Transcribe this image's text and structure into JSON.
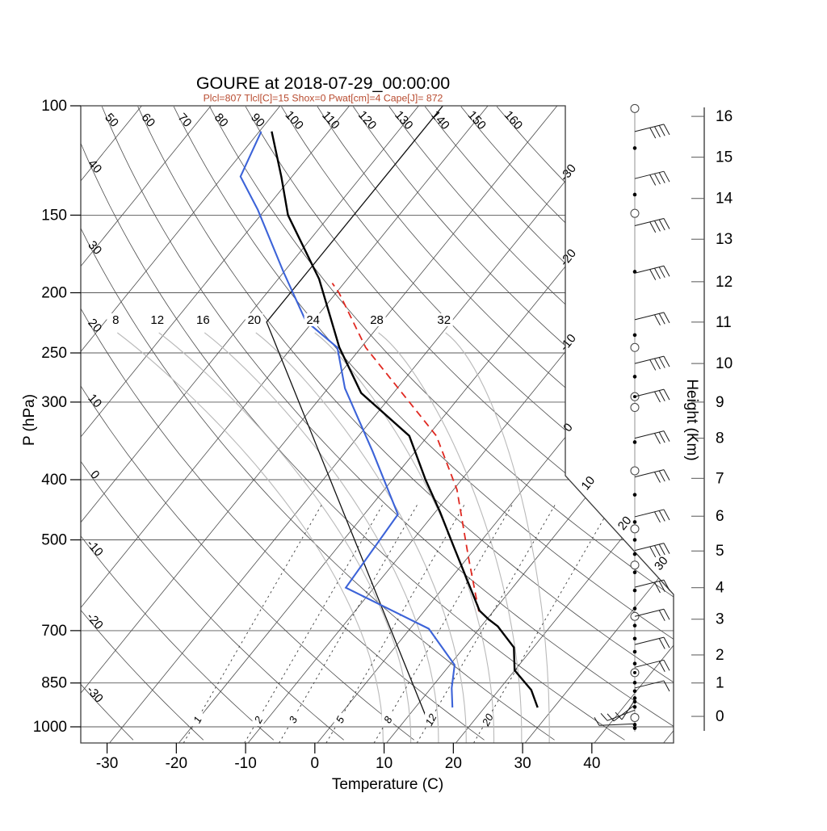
{
  "title": "GOURE at 2018-07-29_00:00:00",
  "subtitle": "Plcl=807 Tlcl[C]=15 Shox=0 Pwat[cm]=4 Cape[J]= 872",
  "colors": {
    "subtitle": "#b84a2e",
    "temperature": "#000000",
    "dewpoint": "#3c63d8",
    "parcel": "#e02820",
    "std_atmosphere": "#111111",
    "grid": "#4d4d4d",
    "pressure_line": "#585858",
    "moist_adiabat": "#b9b9b9",
    "mixing_ratio": "#3a3a3a",
    "border": "#3c3c3c",
    "wind": "#1a1a1a"
  },
  "axes": {
    "x_label": "Temperature (C)",
    "y_left_label": "P (hPa)",
    "y_right_label": "Height (Km)",
    "pressure_ticks": [
      100,
      150,
      200,
      250,
      300,
      400,
      500,
      700,
      850,
      1000
    ],
    "temp_ticks": [
      -30,
      -20,
      -10,
      0,
      10,
      20,
      30,
      40
    ],
    "height_ticks": [
      {
        "km": 0,
        "p": 962
      },
      {
        "km": 1,
        "p": 850
      },
      {
        "km": 2,
        "p": 766
      },
      {
        "km": 3,
        "p": 671
      },
      {
        "km": 4,
        "p": 597
      },
      {
        "km": 5,
        "p": 521
      },
      {
        "km": 6,
        "p": 458
      },
      {
        "km": 7,
        "p": 398
      },
      {
        "km": 8,
        "p": 343
      },
      {
        "km": 9,
        "p": 300
      },
      {
        "km": 10,
        "p": 260
      },
      {
        "km": 11,
        "p": 223
      },
      {
        "km": 12,
        "p": 192
      },
      {
        "km": 13,
        "p": 164
      },
      {
        "km": 14,
        "p": 141
      },
      {
        "km": 15,
        "p": 121
      },
      {
        "km": 16,
        "p": 104
      }
    ]
  },
  "chart_data": {
    "type": "skewt-log-p sounding",
    "station": "GOURE",
    "time": "2018-07-29_00:00:00",
    "indices": {
      "Plcl": 807,
      "Tlcl_C": 15,
      "Shox": 0,
      "Pwat_cm": 4,
      "Cape_J": 872
    },
    "pressure_range_hPa": [
      100,
      1050
    ],
    "temp_axis_range_C": [
      -33.8,
      51.8
    ],
    "temperature_profile_p_T": [
      [
        931,
        28.0
      ],
      [
        872,
        25.0
      ],
      [
        811,
        20.3
      ],
      [
        745,
        17.5
      ],
      [
        689,
        12.7
      ],
      [
        670,
        10.4
      ],
      [
        650,
        8.2
      ],
      [
        510,
        -3.3
      ],
      [
        450,
        -9.2
      ],
      [
        400,
        -15.0
      ],
      [
        340,
        -22.5
      ],
      [
        290,
        -34.5
      ],
      [
        245,
        -43.0
      ],
      [
        190,
        -54.0
      ],
      [
        150,
        -66.0
      ],
      [
        130,
        -71.5
      ],
      [
        110,
        -78.2
      ]
    ],
    "dewpoint_profile_p_T": [
      [
        931,
        15.7
      ],
      [
        866,
        13.3
      ],
      [
        795,
        11.0
      ],
      [
        695,
        3.0
      ],
      [
        597,
        -13.8
      ],
      [
        455,
        -14.9
      ],
      [
        360,
        -26.0
      ],
      [
        285,
        -37.4
      ],
      [
        245,
        -43.3
      ],
      [
        222,
        -51.0
      ],
      [
        185,
        -60.0
      ],
      [
        147,
        -71.0
      ],
      [
        130,
        -77.4
      ],
      [
        110,
        -79.7
      ]
    ],
    "parcel_path_p_T": [
      [
        652,
        8.2
      ],
      [
        533,
        0.3
      ],
      [
        415,
        -9.3
      ],
      [
        340,
        -18.6
      ],
      [
        245,
        -39.2
      ],
      [
        200,
        -49.5
      ],
      [
        193,
        -51.6
      ]
    ],
    "standard_atmosphere_p_T": [
      [
        964,
        13.0
      ],
      [
        223,
        -56.5
      ],
      [
        100,
        -56.5
      ]
    ],
    "isotherms": {
      "start": -120,
      "end": 50,
      "step": 10,
      "right_edge_labels": [
        -30,
        -20,
        -10,
        0
      ],
      "diagonal_edge_labels": [
        10,
        20,
        30
      ]
    },
    "dry_adiabats": {
      "start": -30,
      "end": 160,
      "step": 10,
      "top_labels": [
        50,
        60,
        70,
        80,
        90,
        100,
        110,
        120,
        130,
        140,
        150,
        160
      ],
      "left_labels": [
        40,
        30,
        20,
        10,
        0,
        -10,
        -20,
        -30
      ]
    },
    "moist_adiabats": {
      "values": [
        8,
        12,
        16,
        20,
        24,
        28,
        32
      ],
      "label_pressure_hPa": 225,
      "t_at_label_C": [
        -78.0,
        -72.0,
        -65.4,
        -58.0,
        -49.5,
        -40.3,
        -30.6
      ]
    },
    "mixing_ratio_g_kg": {
      "values": [
        1,
        2,
        3,
        5,
        8,
        12,
        20
      ],
      "dewpoint_at_1000hPa_C": [
        -18.9,
        -10.1,
        -5.1,
        1.7,
        8.6,
        14.8,
        23.0
      ]
    },
    "wind_barbs": [
      {
        "p": 110,
        "feathers": 4,
        "dir": "E"
      },
      {
        "p": 131,
        "feathers": 4,
        "dir": "E"
      },
      {
        "p": 156,
        "feathers": 4,
        "dir": "E"
      },
      {
        "p": 186,
        "feathers": 4,
        "dir": "E"
      },
      {
        "p": 221,
        "feathers": 3,
        "dir": "E"
      },
      {
        "p": 260,
        "feathers": 4,
        "dir": "E"
      },
      {
        "p": 294,
        "feathers": 3,
        "dir": "E"
      },
      {
        "p": 343,
        "feathers": 3,
        "dir": "E"
      },
      {
        "p": 396,
        "feathers": 3,
        "dir": "E"
      },
      {
        "p": 459,
        "feathers": 3,
        "dir": "E"
      },
      {
        "p": 520,
        "feathers": 4,
        "dir": "E"
      },
      {
        "p": 596,
        "feathers": 3,
        "dir": "E"
      },
      {
        "p": 664,
        "feathers": 2,
        "dir": "E"
      },
      {
        "p": 737,
        "feathers": 2,
        "dir": "E"
      },
      {
        "p": 802,
        "feathers": 2,
        "dir": "E"
      },
      {
        "p": 866,
        "feathers": 1,
        "dir": "E"
      },
      {
        "p": 906,
        "feathers": 1,
        "dir": "fan0"
      },
      {
        "p": 922,
        "feathers": 1,
        "dir": "fan1"
      },
      {
        "p": 940,
        "feathers": 1,
        "dir": "fan2"
      },
      {
        "p": 989,
        "feathers": 1,
        "dir": "fan3"
      }
    ],
    "wind_markers": {
      "dots_p": [
        117,
        139,
        185,
        234,
        273,
        348,
        423,
        468,
        500,
        527,
        564,
        603,
        645,
        687,
        721,
        757,
        791,
        849,
        876,
        899,
        911,
        929,
        992,
        1005
      ],
      "circles_p": [
        101,
        149,
        245,
        306,
        387,
        480,
        549,
        664,
        966
      ],
      "circle_dots_p": [
        294,
        818
      ]
    }
  }
}
